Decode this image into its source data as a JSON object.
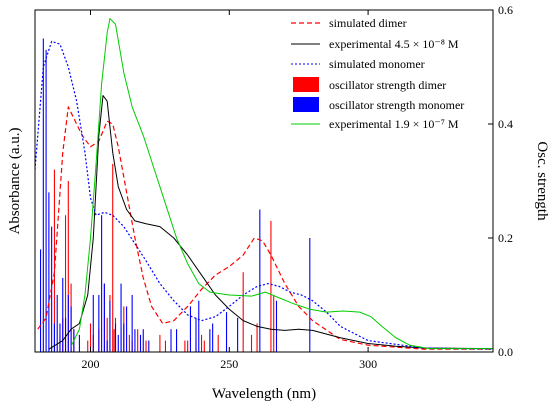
{
  "chart_data": {
    "type": "line",
    "x_axis": {
      "label": "Wavelength (nm)",
      "range": [
        180,
        345
      ],
      "ticks": [
        200,
        250,
        300
      ]
    },
    "y_axis_left": {
      "label": "Absorbance (a.u.)",
      "tick_labels_shown": false
    },
    "y_axis_right": {
      "label": "Osc. strength",
      "range": [
        0,
        0.6
      ],
      "ticks": [
        "0.0",
        "0.2",
        "0.4",
        "0.6"
      ]
    },
    "legend_position": "top-right",
    "series": [
      {
        "name": "simulated dimer",
        "style": "dashed",
        "color": "#ff0000",
        "points": [
          [
            181,
            0.04
          ],
          [
            184,
            0.06
          ],
          [
            187,
            0.14
          ],
          [
            190,
            0.35
          ],
          [
            192,
            0.43
          ],
          [
            194,
            0.41
          ],
          [
            197,
            0.38
          ],
          [
            200,
            0.36
          ],
          [
            203,
            0.37
          ],
          [
            206,
            0.405
          ],
          [
            208,
            0.4
          ],
          [
            210,
            0.36
          ],
          [
            213,
            0.28
          ],
          [
            216,
            0.2
          ],
          [
            219,
            0.13
          ],
          [
            222,
            0.08
          ],
          [
            226,
            0.05
          ],
          [
            230,
            0.055
          ],
          [
            235,
            0.08
          ],
          [
            240,
            0.11
          ],
          [
            245,
            0.135
          ],
          [
            250,
            0.15
          ],
          [
            255,
            0.17
          ],
          [
            259,
            0.2
          ],
          [
            262,
            0.195
          ],
          [
            265,
            0.17
          ],
          [
            270,
            0.12
          ],
          [
            275,
            0.08
          ],
          [
            280,
            0.055
          ],
          [
            290,
            0.022
          ],
          [
            300,
            0.012
          ],
          [
            320,
            0.005
          ],
          [
            345,
            0.005
          ]
        ]
      },
      {
        "name": "experimental 4.5 × 10⁻⁸ M",
        "style": "solid",
        "color": "#000000",
        "points": [
          [
            185,
            0.005
          ],
          [
            190,
            0.02
          ],
          [
            193,
            0.04
          ],
          [
            196,
            0.05
          ],
          [
            199,
            0.1
          ],
          [
            201,
            0.2
          ],
          [
            203,
            0.38
          ],
          [
            204.5,
            0.45
          ],
          [
            206,
            0.44
          ],
          [
            208,
            0.35
          ],
          [
            210,
            0.29
          ],
          [
            213,
            0.25
          ],
          [
            216,
            0.23
          ],
          [
            220,
            0.225
          ],
          [
            225,
            0.22
          ],
          [
            230,
            0.2
          ],
          [
            235,
            0.17
          ],
          [
            240,
            0.135
          ],
          [
            245,
            0.1
          ],
          [
            250,
            0.075
          ],
          [
            255,
            0.055
          ],
          [
            260,
            0.045
          ],
          [
            265,
            0.04
          ],
          [
            270,
            0.038
          ],
          [
            275,
            0.04
          ],
          [
            280,
            0.038
          ],
          [
            290,
            0.025
          ],
          [
            300,
            0.015
          ],
          [
            310,
            0.01
          ],
          [
            320,
            0.007
          ],
          [
            345,
            0.006
          ]
        ]
      },
      {
        "name": "simulated monomer",
        "style": "dotted",
        "color": "#0000ff",
        "points": [
          [
            180,
            0.32
          ],
          [
            183,
            0.5
          ],
          [
            186,
            0.545
          ],
          [
            189,
            0.54
          ],
          [
            192,
            0.5
          ],
          [
            195,
            0.44
          ],
          [
            198,
            0.35
          ],
          [
            200,
            0.27
          ],
          [
            202,
            0.24
          ],
          [
            205,
            0.245
          ],
          [
            208,
            0.24
          ],
          [
            212,
            0.22
          ],
          [
            216,
            0.19
          ],
          [
            220,
            0.16
          ],
          [
            225,
            0.12
          ],
          [
            230,
            0.09
          ],
          [
            235,
            0.065
          ],
          [
            240,
            0.055
          ],
          [
            245,
            0.062
          ],
          [
            250,
            0.08
          ],
          [
            255,
            0.1
          ],
          [
            260,
            0.115
          ],
          [
            264,
            0.12
          ],
          [
            268,
            0.115
          ],
          [
            272,
            0.105
          ],
          [
            276,
            0.1
          ],
          [
            280,
            0.09
          ],
          [
            285,
            0.07
          ],
          [
            290,
            0.045
          ],
          [
            300,
            0.02
          ],
          [
            320,
            0.007
          ],
          [
            345,
            0.005
          ]
        ]
      },
      {
        "name": "experimental 1.9 × 10⁻⁷ M",
        "style": "solid",
        "color": "#00cc00",
        "points": [
          [
            193,
            0.01
          ],
          [
            196,
            0.04
          ],
          [
            198,
            0.1
          ],
          [
            200,
            0.2
          ],
          [
            202,
            0.33
          ],
          [
            204,
            0.47
          ],
          [
            206,
            0.56
          ],
          [
            207,
            0.585
          ],
          [
            209,
            0.575
          ],
          [
            212,
            0.49
          ],
          [
            215,
            0.43
          ],
          [
            219,
            0.38
          ],
          [
            223,
            0.32
          ],
          [
            227,
            0.26
          ],
          [
            231,
            0.2
          ],
          [
            235,
            0.155
          ],
          [
            239,
            0.12
          ],
          [
            243,
            0.105
          ],
          [
            250,
            0.1
          ],
          [
            258,
            0.098
          ],
          [
            263,
            0.105
          ],
          [
            268,
            0.095
          ],
          [
            273,
            0.085
          ],
          [
            279,
            0.075
          ],
          [
            285,
            0.07
          ],
          [
            291,
            0.072
          ],
          [
            297,
            0.07
          ],
          [
            301,
            0.062
          ],
          [
            305,
            0.045
          ],
          [
            310,
            0.025
          ],
          [
            315,
            0.012
          ],
          [
            322,
            0.006
          ],
          [
            345,
            0.006
          ]
        ]
      }
    ],
    "bar_series": [
      {
        "name": "oscillator strength dimer",
        "color": "#ff0000",
        "sticks": [
          [
            187,
            0.32
          ],
          [
            189,
            0.03
          ],
          [
            190,
            0.06
          ],
          [
            191,
            0.24
          ],
          [
            192,
            0.3
          ],
          [
            193,
            0.12
          ],
          [
            194,
            0.04
          ],
          [
            199,
            0.02
          ],
          [
            200,
            0.05
          ],
          [
            201,
            0.03
          ],
          [
            203,
            0.04
          ],
          [
            205,
            0.12
          ],
          [
            206,
            0.06
          ],
          [
            207,
            0.1
          ],
          [
            208,
            0.33
          ],
          [
            208.5,
            0.04
          ],
          [
            209,
            0.06
          ],
          [
            211,
            0.04
          ],
          [
            212,
            0.08
          ],
          [
            214,
            0.03
          ],
          [
            215,
            0.02
          ],
          [
            217,
            0.04
          ],
          [
            220,
            0.02
          ],
          [
            225,
            0.03
          ],
          [
            227,
            0.02
          ],
          [
            234,
            0.02
          ],
          [
            235,
            0.02
          ],
          [
            238,
            0.02
          ],
          [
            240,
            0.03
          ],
          [
            241,
            0.02
          ],
          [
            246,
            0.03
          ],
          [
            255,
            0.14
          ],
          [
            258,
            0.03
          ],
          [
            260,
            0.05
          ],
          [
            265,
            0.23
          ],
          [
            266,
            0.1
          ]
        ]
      },
      {
        "name": "oscillator strength monomer",
        "color": "#0000ff",
        "sticks": [
          [
            182,
            0.18
          ],
          [
            183,
            0.55
          ],
          [
            184,
            0.53
          ],
          [
            185,
            0.28
          ],
          [
            186,
            0.22
          ],
          [
            187,
            0.05
          ],
          [
            188,
            0.1
          ],
          [
            189,
            0.05
          ],
          [
            190,
            0.13
          ],
          [
            191,
            0.06
          ],
          [
            192,
            0.1
          ],
          [
            193,
            0.08
          ],
          [
            194,
            0.04
          ],
          [
            196,
            0.03
          ],
          [
            201,
            0.1
          ],
          [
            203,
            0.1
          ],
          [
            204,
            0.24
          ],
          [
            205,
            0.12
          ],
          [
            206,
            0.02
          ],
          [
            207,
            0.09
          ],
          [
            209,
            0.05
          ],
          [
            210,
            0.03
          ],
          [
            211,
            0.12
          ],
          [
            212,
            0.05
          ],
          [
            213,
            0.08
          ],
          [
            215,
            0.1
          ],
          [
            216,
            0.04
          ],
          [
            218,
            0.03
          ],
          [
            219,
            0.04
          ],
          [
            221,
            0.02
          ],
          [
            229,
            0.04
          ],
          [
            231,
            0.04
          ],
          [
            236,
            0.08
          ],
          [
            238,
            0.06
          ],
          [
            239,
            0.09
          ],
          [
            243,
            0.04
          ],
          [
            244,
            0.05
          ],
          [
            249,
            0.07
          ],
          [
            253,
            0.06
          ],
          [
            261,
            0.25
          ],
          [
            267,
            0.09
          ],
          [
            279,
            0.2
          ]
        ]
      }
    ]
  }
}
